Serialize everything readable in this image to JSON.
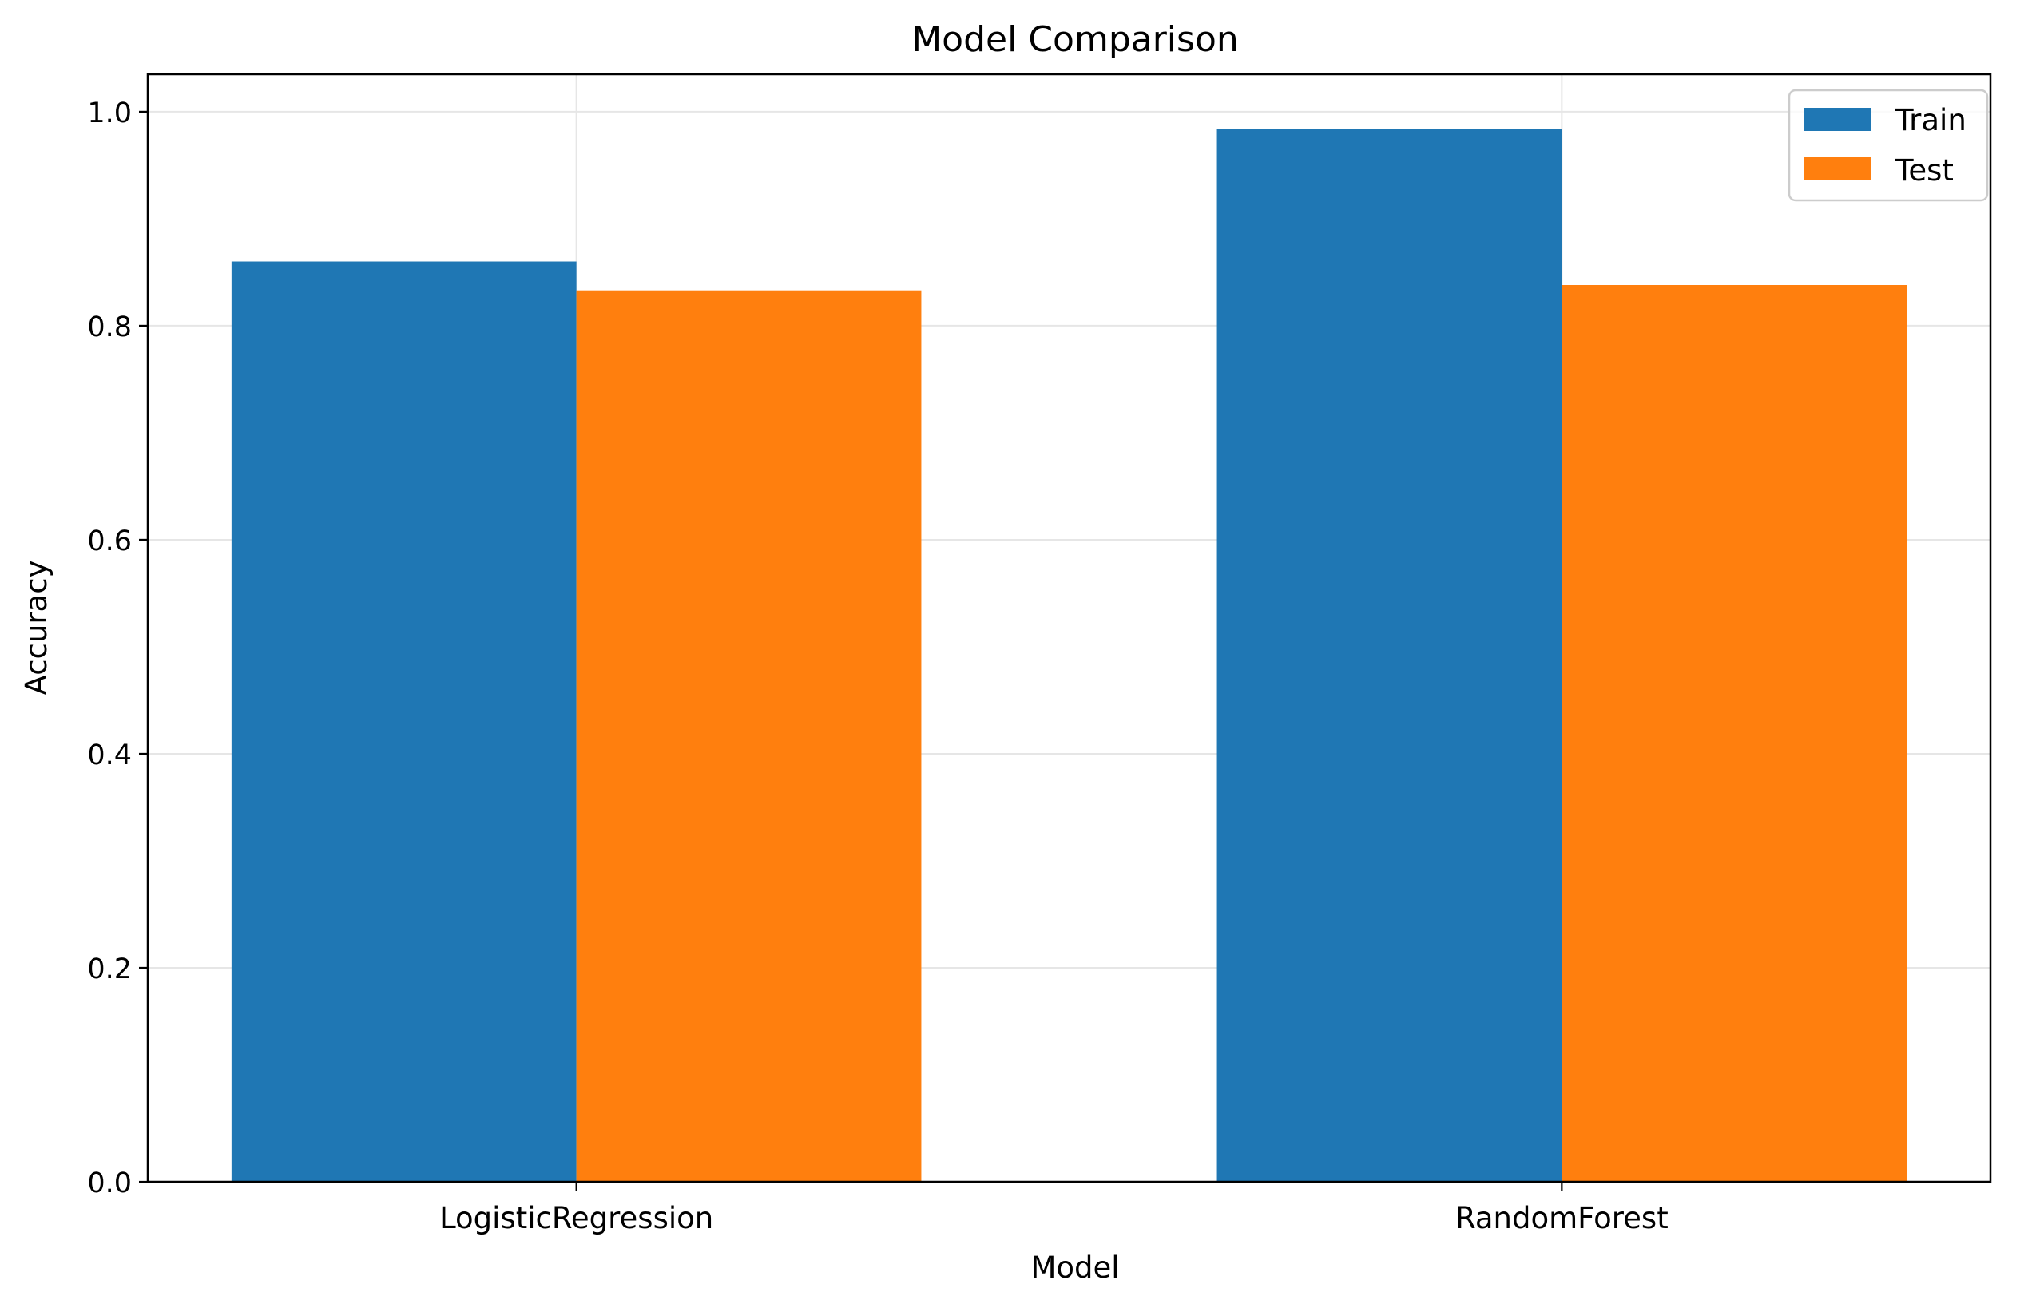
{
  "chart_data": {
    "type": "bar",
    "title": "Model Comparison",
    "xlabel": "Model",
    "ylabel": "Accuracy",
    "categories": [
      "LogisticRegression",
      "RandomForest"
    ],
    "series": [
      {
        "name": "Train",
        "values": [
          0.86,
          0.984
        ],
        "color": "#1f77b4"
      },
      {
        "name": "Test",
        "values": [
          0.833,
          0.838
        ],
        "color": "#ff7f0e"
      }
    ],
    "ylim": [
      0,
      1.035
    ],
    "yticks": [
      0.0,
      0.2,
      0.4,
      0.6,
      0.8,
      1.0
    ],
    "ytick_labels": [
      "0.0",
      "0.2",
      "0.4",
      "0.6",
      "0.8",
      "1.0"
    ],
    "grid": true,
    "legend_position": "top-right"
  }
}
